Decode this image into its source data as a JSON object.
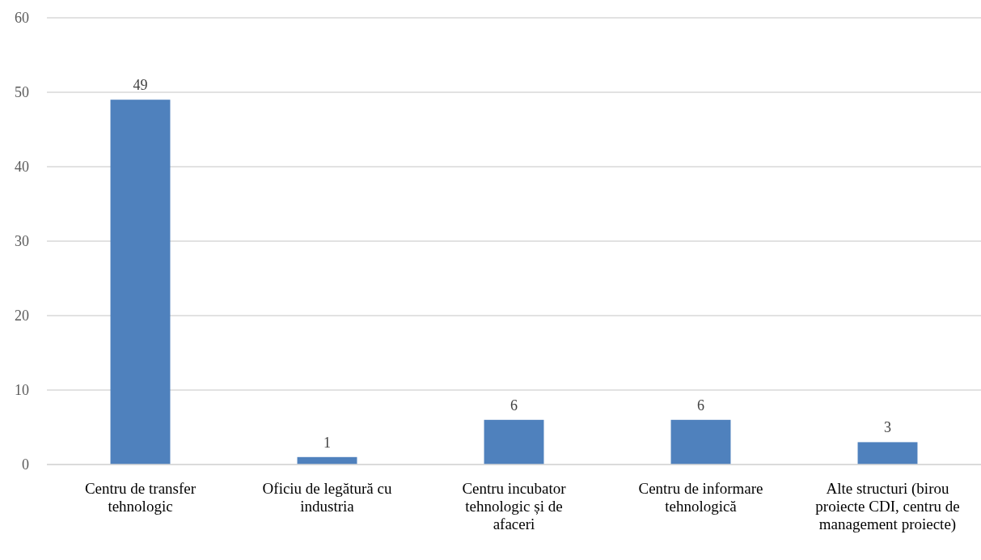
{
  "chart_data": {
    "type": "bar",
    "categories": [
      "Centru de transfer tehnologic",
      "Oficiu de legătură cu industria",
      "Centru incubator tehnologic și de afaceri",
      "Centru de informare tehnologică",
      "Alte structuri (birou proiecte CDI, centru de management proiecte)"
    ],
    "values": [
      49,
      1,
      6,
      6,
      3
    ],
    "color": "#4f81bd",
    "ylim": [
      0,
      60
    ],
    "yticks": [
      0,
      10,
      20,
      30,
      40,
      50,
      60
    ],
    "grid": "y",
    "data_labels": true
  }
}
